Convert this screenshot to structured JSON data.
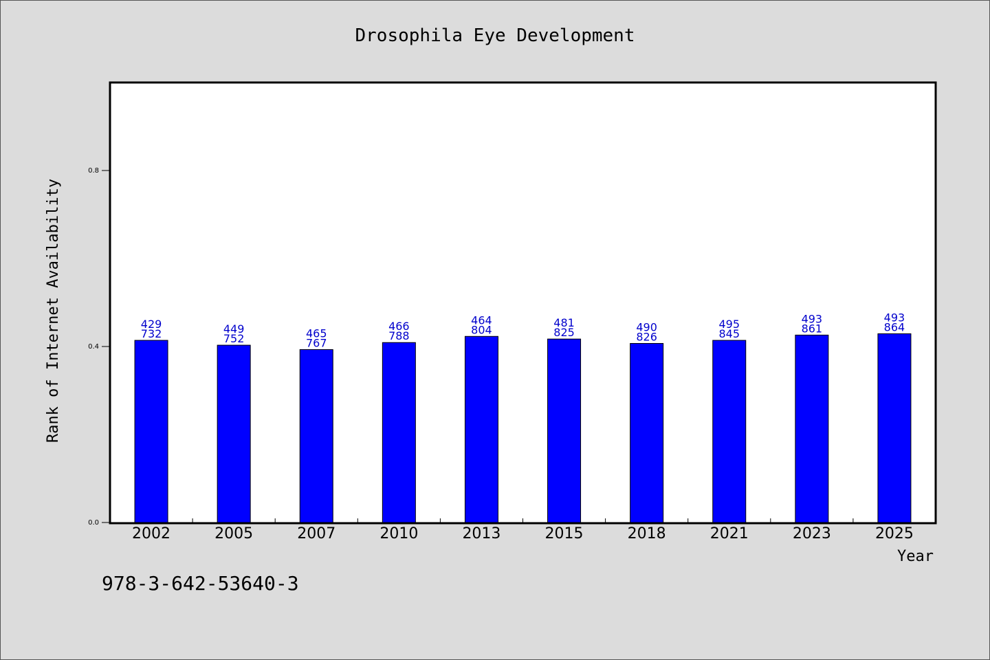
{
  "chart_data": {
    "type": "bar",
    "title": "Drosophila Eye Development",
    "xlabel": "Year",
    "ylabel": "Rank of Internet Availability",
    "categories": [
      "2002",
      "2005",
      "2007",
      "2010",
      "2013",
      "2015",
      "2018",
      "2021",
      "2023",
      "2025"
    ],
    "values": [
      0.414,
      0.403,
      0.393,
      0.409,
      0.423,
      0.417,
      0.407,
      0.414,
      0.426,
      0.429
    ],
    "labels_top": [
      "429",
      "449",
      "465",
      "466",
      "464",
      "481",
      "490",
      "495",
      "493",
      "493"
    ],
    "labels_bottom": [
      "732",
      "752",
      "767",
      "788",
      "804",
      "825",
      "826",
      "845",
      "861",
      "864"
    ],
    "ylim": [
      0,
      1.0
    ],
    "yticks": [
      0.0,
      0.4,
      0.8
    ],
    "ytick_labels": [
      "0.0",
      "0.4",
      "0.8"
    ],
    "bar_color": "#0000ff",
    "label_color": "#0000cc",
    "grid": false
  },
  "footnote": "978-3-642-53640-3"
}
